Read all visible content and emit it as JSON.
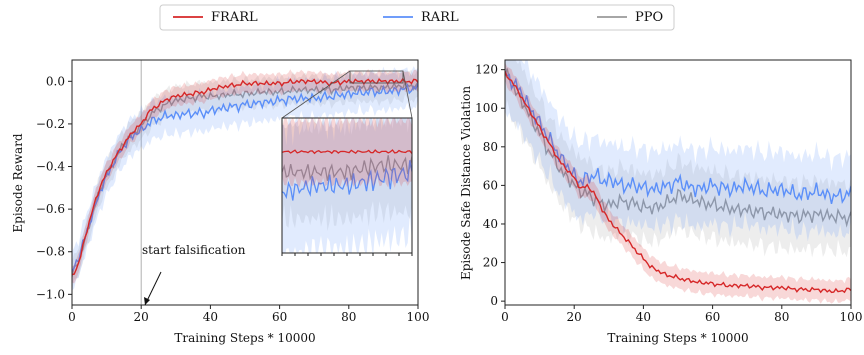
{
  "legend": {
    "placement": "top-center",
    "entries": [
      {
        "label": "FRARL",
        "color": "#d62728"
      },
      {
        "label": "RARL",
        "color": "#5b8ff9"
      },
      {
        "label": "PPO",
        "color": "#999999"
      }
    ]
  },
  "chart_data": [
    {
      "type": "line",
      "xlabel": "Training Steps * 10000",
      "ylabel": "Episode Reward",
      "xlim": [
        0,
        100
      ],
      "ylim": [
        -1.05,
        0.1
      ],
      "xticks": [
        "0",
        "20",
        "40",
        "60",
        "80",
        "100"
      ],
      "yticks": [
        "−1.0",
        "−0.8",
        "−0.6",
        "−0.4",
        "−0.2",
        "0.0"
      ],
      "x": [
        0,
        2,
        4,
        6,
        8,
        10,
        12,
        14,
        16,
        18,
        20,
        22,
        24,
        26,
        28,
        30,
        34,
        38,
        42,
        46,
        50,
        55,
        60,
        65,
        70,
        75,
        80,
        85,
        90,
        95,
        100
      ],
      "series": [
        {
          "name": "FRARL",
          "color": "#d62728",
          "values": [
            -0.92,
            -0.85,
            -0.72,
            -0.6,
            -0.5,
            -0.43,
            -0.37,
            -0.32,
            -0.27,
            -0.23,
            -0.2,
            -0.15,
            -0.12,
            -0.1,
            -0.08,
            -0.07,
            -0.06,
            -0.05,
            -0.03,
            -0.02,
            -0.01,
            -0.01,
            -0.01,
            0.0,
            0.0,
            -0.01,
            0.0,
            0.0,
            0.0,
            0.0,
            0.0
          ],
          "band": 0.04
        },
        {
          "name": "RARL",
          "color": "#5b8ff9",
          "values": [
            -0.9,
            -0.82,
            -0.72,
            -0.62,
            -0.52,
            -0.45,
            -0.38,
            -0.33,
            -0.28,
            -0.25,
            -0.23,
            -0.2,
            -0.18,
            -0.17,
            -0.16,
            -0.16,
            -0.15,
            -0.15,
            -0.13,
            -0.12,
            -0.11,
            -0.1,
            -0.09,
            -0.08,
            -0.08,
            -0.07,
            -0.06,
            -0.05,
            -0.05,
            -0.04,
            -0.03
          ],
          "band": 0.08
        },
        {
          "name": "PPO",
          "color": "#999999",
          "values": [
            -0.91,
            -0.84,
            -0.73,
            -0.62,
            -0.51,
            -0.44,
            -0.38,
            -0.32,
            -0.27,
            -0.24,
            -0.21,
            -0.17,
            -0.14,
            -0.12,
            -0.1,
            -0.09,
            -0.08,
            -0.07,
            -0.07,
            -0.06,
            -0.06,
            -0.05,
            -0.05,
            -0.04,
            -0.04,
            -0.04,
            -0.03,
            -0.03,
            -0.03,
            -0.02,
            -0.02
          ],
          "band": 0.06
        }
      ],
      "vline": {
        "x": 20,
        "color": "#b0b0b0"
      },
      "annotation": {
        "text": "start falsification",
        "x": 20,
        "y": -1.0,
        "text_x": 22,
        "text_y": -0.85
      },
      "inset": {
        "xlim": [
          80,
          100
        ],
        "ylim": [
          -0.15,
          0.05
        ],
        "connected_to": "top-right"
      }
    },
    {
      "type": "line",
      "xlabel": "Training Steps * 10000",
      "ylabel": "Episode Safe Distance Violation",
      "xlim": [
        0,
        100
      ],
      "ylim": [
        -2,
        125
      ],
      "xticks": [
        "0",
        "20",
        "40",
        "60",
        "80",
        "100"
      ],
      "yticks": [
        "0",
        "20",
        "40",
        "60",
        "80",
        "100",
        "120"
      ],
      "x": [
        0,
        2,
        4,
        6,
        8,
        10,
        12,
        14,
        16,
        18,
        20,
        22,
        24,
        26,
        28,
        30,
        34,
        38,
        42,
        46,
        50,
        55,
        60,
        65,
        70,
        75,
        80,
        85,
        90,
        95,
        100
      ],
      "series": [
        {
          "name": "FRARL",
          "color": "#d62728",
          "values": [
            118,
            114,
            108,
            102,
            96,
            90,
            84,
            78,
            72,
            68,
            64,
            58,
            60,
            55,
            48,
            42,
            34,
            26,
            18,
            14,
            12,
            10,
            9,
            8,
            8,
            7,
            7,
            6,
            6,
            5,
            6
          ],
          "band": 5
        },
        {
          "name": "RARL",
          "color": "#5b8ff9",
          "values": [
            118,
            114,
            110,
            104,
            98,
            92,
            87,
            80,
            75,
            70,
            65,
            62,
            64,
            66,
            62,
            63,
            60,
            60,
            58,
            59,
            62,
            58,
            60,
            58,
            60,
            57,
            58,
            55,
            57,
            54,
            56
          ],
          "band": 18
        },
        {
          "name": "PPO",
          "color": "#999999",
          "values": [
            118,
            113,
            106,
            100,
            93,
            87,
            80,
            74,
            68,
            64,
            60,
            57,
            55,
            53,
            50,
            50,
            52,
            50,
            48,
            50,
            55,
            52,
            50,
            48,
            47,
            46,
            45,
            44,
            45,
            44,
            43
          ],
          "band": 16
        }
      ]
    }
  ]
}
